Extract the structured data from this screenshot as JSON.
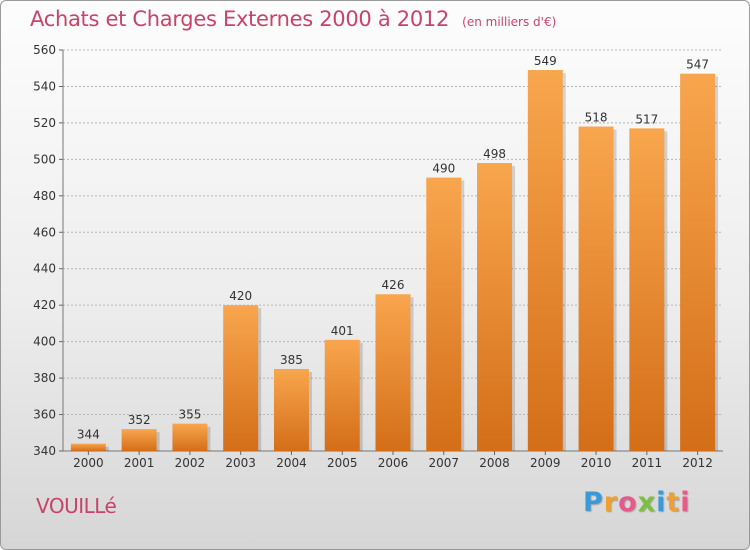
{
  "header": {
    "title": "Achats et Charges Externes 2000 à 2012",
    "subtitle": "(en milliers d'€)"
  },
  "footer": {
    "commune": "VOUILLé",
    "brand_letters": [
      {
        "ch": "P",
        "color": "#3a9ad9"
      },
      {
        "ch": "r",
        "color": "#f0a030"
      },
      {
        "ch": "o",
        "color": "#e85a8a"
      },
      {
        "ch": "x",
        "color": "#7ac142"
      },
      {
        "ch": "i",
        "color": "#3a9ad9"
      },
      {
        "ch": "t",
        "color": "#f0a030"
      },
      {
        "ch": "i",
        "color": "#e85a8a"
      }
    ]
  },
  "colors": {
    "bar_light": "#f8a64e",
    "bar_dark": "#d46e18",
    "accent_text": "#c8436a"
  },
  "chart_data": {
    "type": "bar",
    "title": "Achats et Charges Externes 2000 à 2012",
    "subtitle": "(en milliers d'€)",
    "categories": [
      "2000",
      "2001",
      "2002",
      "2003",
      "2004",
      "2005",
      "2006",
      "2007",
      "2008",
      "2009",
      "2010",
      "2011",
      "2012"
    ],
    "values": [
      344,
      352,
      355,
      420,
      385,
      401,
      426,
      490,
      498,
      549,
      518,
      517,
      547
    ],
    "ylim": [
      340,
      560
    ],
    "yticks": [
      340,
      360,
      380,
      400,
      420,
      440,
      460,
      480,
      500,
      520,
      540,
      560
    ],
    "grid": true,
    "xlabel": "",
    "ylabel": ""
  }
}
